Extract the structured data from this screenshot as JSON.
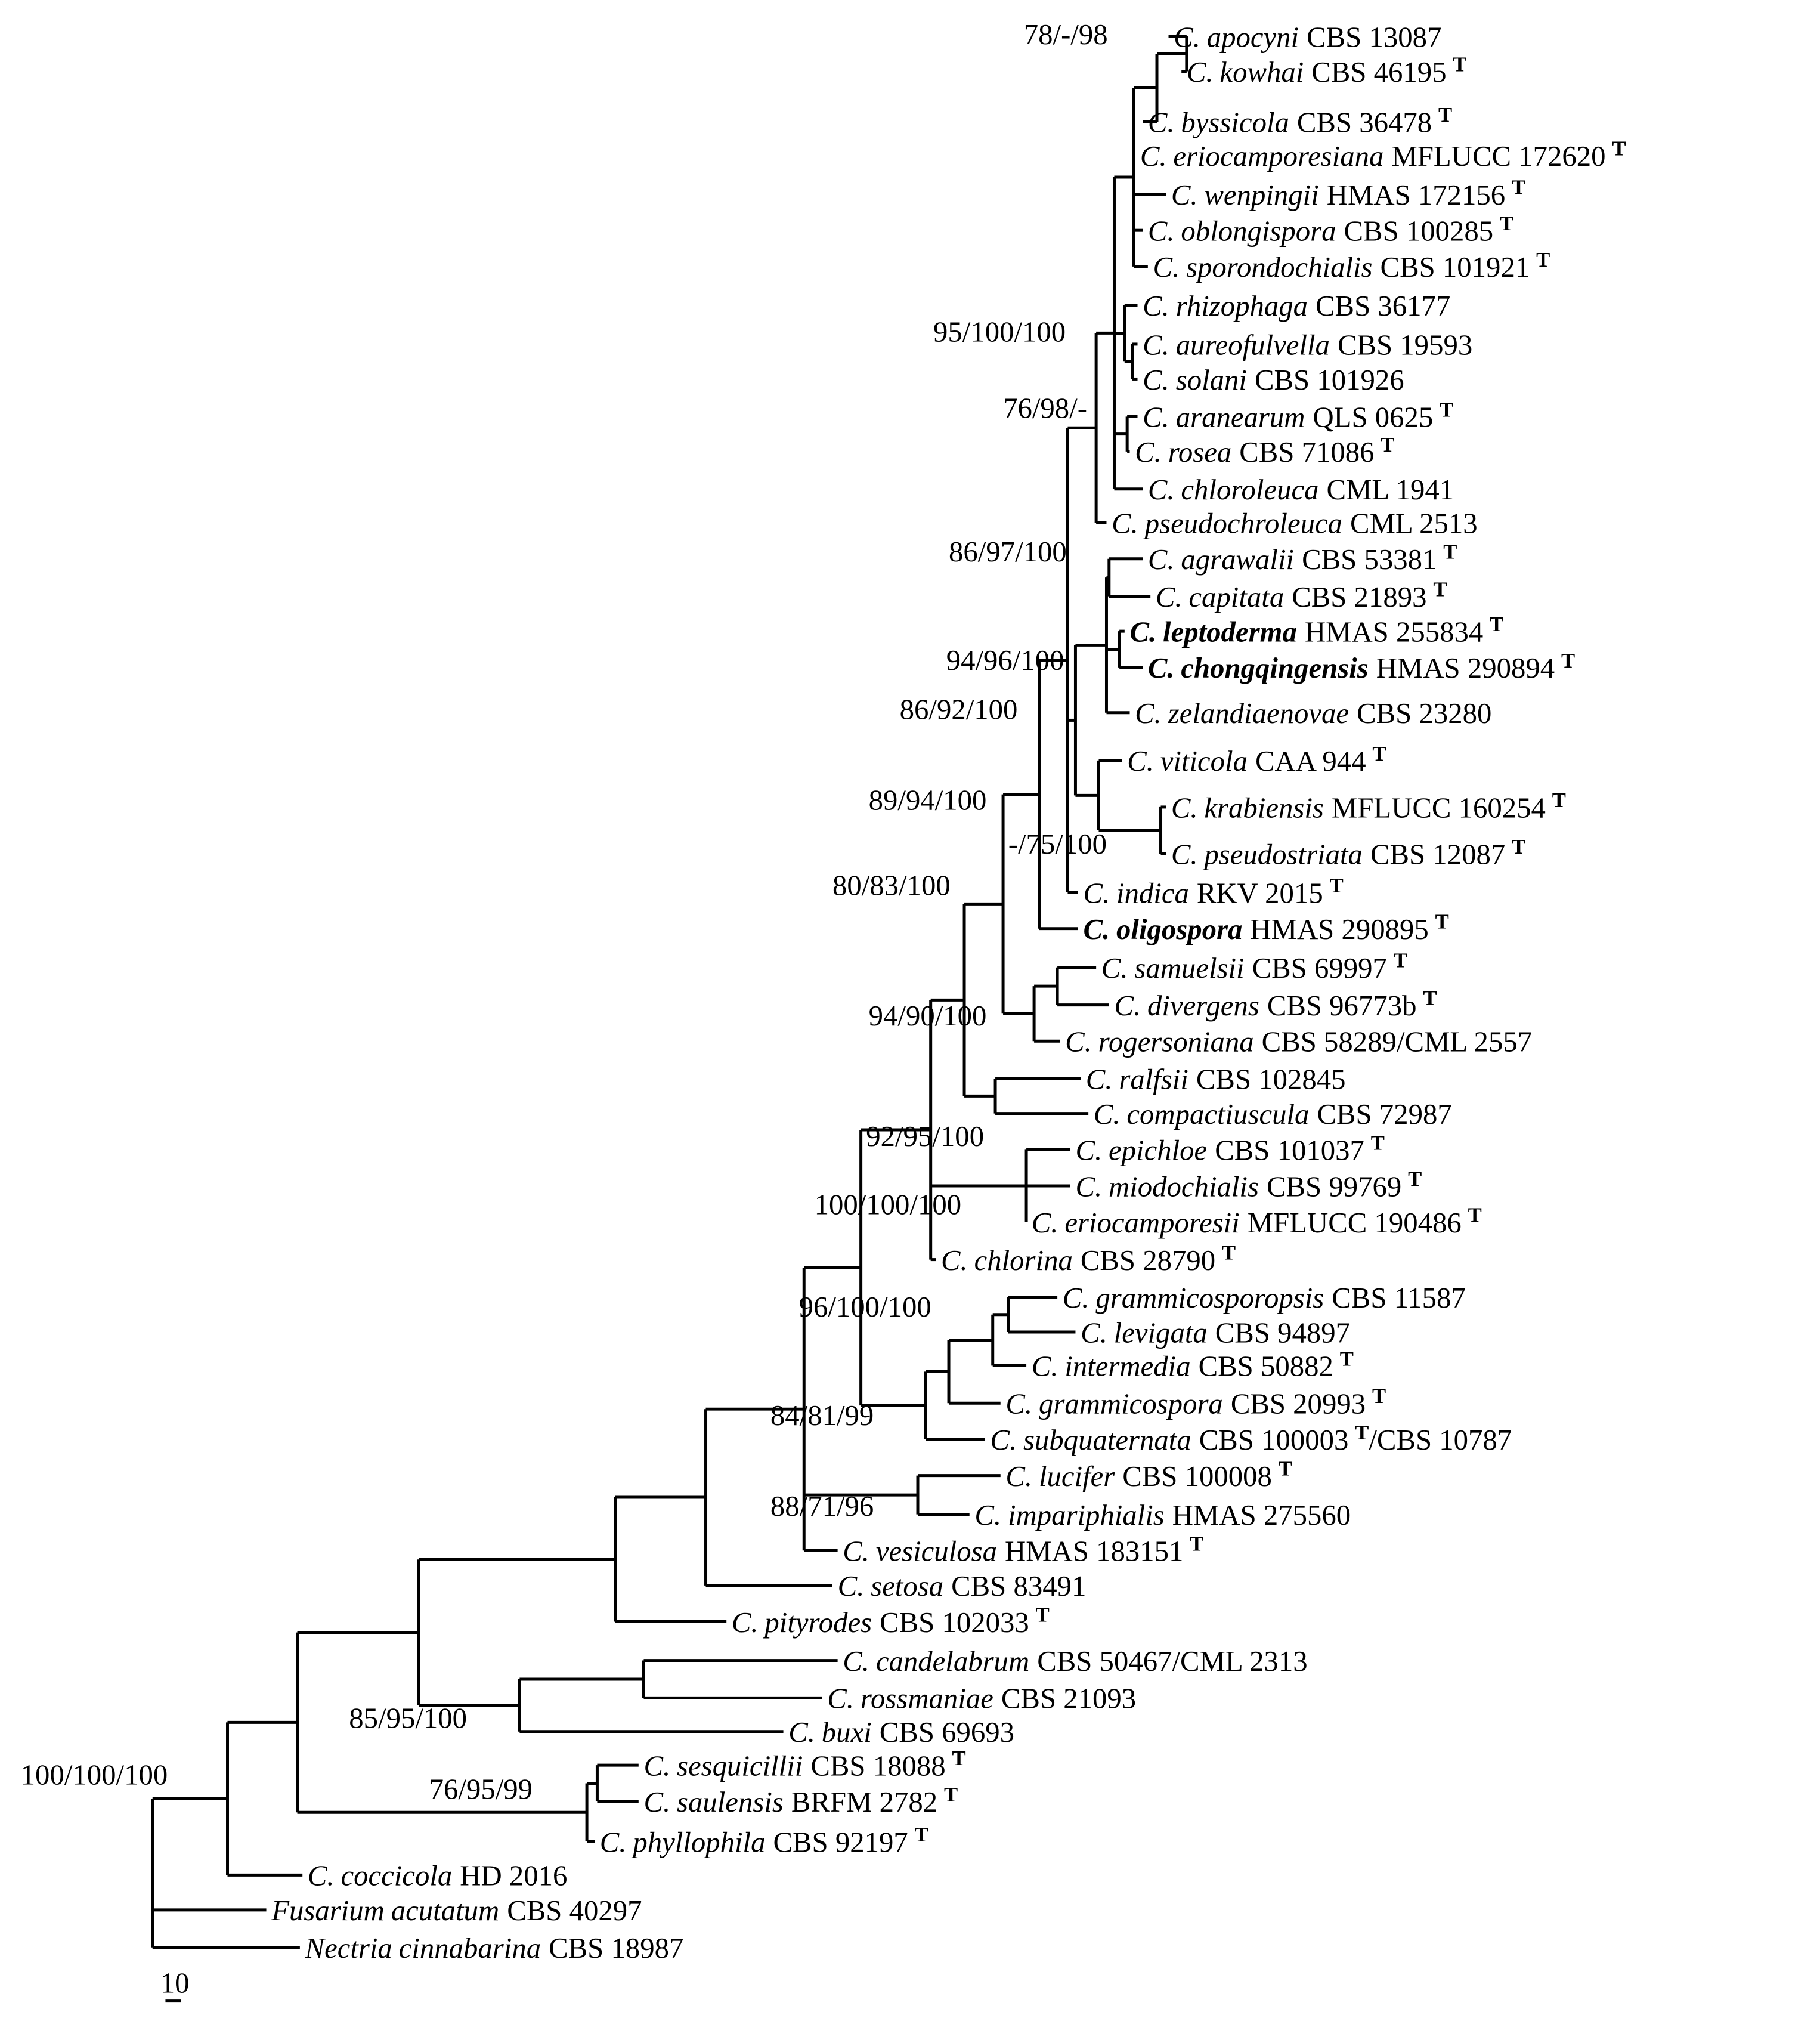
{
  "taxa": [
    {
      "id": "t1",
      "genus": "C.",
      "species": "apocyni",
      "strain": "CBS 13087",
      "type": false,
      "bold": false
    },
    {
      "id": "t2",
      "genus": "C.",
      "species": "kowhai",
      "strain": "CBS 46195",
      "type": true,
      "bold": false
    },
    {
      "id": "t3",
      "genus": "C.",
      "species": "byssicola",
      "strain": "CBS 36478",
      "type": true,
      "bold": false
    },
    {
      "id": "t4",
      "genus": "C.",
      "species": "eriocamporesiana",
      "strain": "MFLUCC 172620",
      "type": true,
      "bold": false
    },
    {
      "id": "t5",
      "genus": "C.",
      "species": "wenpingii",
      "strain": "HMAS 172156",
      "type": true,
      "bold": false
    },
    {
      "id": "t6",
      "genus": "C.",
      "species": "oblongispora",
      "strain": "CBS 100285",
      "type": true,
      "bold": false
    },
    {
      "id": "t7",
      "genus": "C.",
      "species": "sporondochialis",
      "strain": "CBS 101921",
      "type": true,
      "bold": false
    },
    {
      "id": "t8",
      "genus": "C.",
      "species": "rhizophaga",
      "strain": "CBS 36177",
      "type": false,
      "bold": false
    },
    {
      "id": "t9",
      "genus": "C.",
      "species": "aureofulvella",
      "strain": "CBS 19593",
      "type": false,
      "bold": false
    },
    {
      "id": "t10",
      "genus": "C.",
      "species": "solani",
      "strain": "CBS 101926",
      "type": false,
      "bold": false
    },
    {
      "id": "t11",
      "genus": "C.",
      "species": "aranearum",
      "strain": "QLS 0625",
      "type": true,
      "bold": false
    },
    {
      "id": "t12",
      "genus": "C.",
      "species": "rosea",
      "strain": "CBS 71086",
      "type": true,
      "bold": false
    },
    {
      "id": "t13",
      "genus": "C.",
      "species": "chloroleuca",
      "strain": "CML 1941",
      "type": false,
      "bold": false
    },
    {
      "id": "t14",
      "genus": "C.",
      "species": "pseudochroleuca",
      "strain": "CML 2513",
      "type": false,
      "bold": false
    },
    {
      "id": "t15",
      "genus": "C.",
      "species": "agrawalii",
      "strain": "CBS 53381",
      "type": true,
      "bold": false
    },
    {
      "id": "t16",
      "genus": "C.",
      "species": "capitata",
      "strain": "CBS 21893",
      "type": true,
      "bold": false
    },
    {
      "id": "t17",
      "genus": "C.",
      "species": "leptoderma",
      "strain": "HMAS 255834",
      "type": true,
      "bold": true
    },
    {
      "id": "t18",
      "genus": "C.",
      "species": "chongqingensis",
      "strain": "HMAS 290894",
      "type": true,
      "bold": true
    },
    {
      "id": "t19",
      "genus": "C.",
      "species": "zelandiaenovae",
      "strain": "CBS 23280",
      "type": false,
      "bold": false
    },
    {
      "id": "t20",
      "genus": "C.",
      "species": "viticola",
      "strain": "CAA 944",
      "type": true,
      "bold": false
    },
    {
      "id": "t21",
      "genus": "C.",
      "species": "krabiensis",
      "strain": "MFLUCC 160254",
      "type": true,
      "bold": false
    },
    {
      "id": "t22",
      "genus": "C.",
      "species": "pseudostriata",
      "strain": "CBS 12087",
      "type": true,
      "bold": false
    },
    {
      "id": "t23",
      "genus": "C.",
      "species": "indica",
      "strain": "RKV 2015",
      "type": true,
      "bold": false
    },
    {
      "id": "t24",
      "genus": "C.",
      "species": "oligospora",
      "strain": "HMAS 290895",
      "type": true,
      "bold": true
    },
    {
      "id": "t25",
      "genus": "C.",
      "species": "samuelsii",
      "strain": "CBS 69997",
      "type": true,
      "bold": false
    },
    {
      "id": "t26",
      "genus": "C.",
      "species": "divergens",
      "strain": "CBS 96773b",
      "type": true,
      "bold": false
    },
    {
      "id": "t27",
      "genus": "C.",
      "species": "rogersoniana",
      "strain": "CBS 58289/CML 2557",
      "type": false,
      "bold": false
    },
    {
      "id": "t28",
      "genus": "C.",
      "species": "ralfsii",
      "strain": "CBS 102845",
      "type": false,
      "bold": false
    },
    {
      "id": "t29",
      "genus": "C.",
      "species": "compactiuscula",
      "strain": "CBS 72987",
      "type": false,
      "bold": false
    },
    {
      "id": "t30",
      "genus": "C.",
      "species": "epichloe",
      "strain": "CBS 101037",
      "type": true,
      "bold": false
    },
    {
      "id": "t31",
      "genus": "C.",
      "species": "miodochialis",
      "strain": "CBS 99769",
      "type": true,
      "bold": false
    },
    {
      "id": "t32",
      "genus": "C.",
      "species": "eriocamporesii",
      "strain": "MFLUCC 190486",
      "type": true,
      "bold": false
    },
    {
      "id": "t33",
      "genus": "C.",
      "species": "chlorina",
      "strain": "CBS 28790",
      "type": true,
      "bold": false
    },
    {
      "id": "t34",
      "genus": "C.",
      "species": "grammicosporopsis",
      "strain": "CBS 11587",
      "type": false,
      "bold": false
    },
    {
      "id": "t35",
      "genus": "C.",
      "species": "levigata",
      "strain": "CBS 94897",
      "type": false,
      "bold": false
    },
    {
      "id": "t36",
      "genus": "C.",
      "species": "intermedia",
      "strain": "CBS 50882",
      "type": true,
      "bold": false
    },
    {
      "id": "t37",
      "genus": "C.",
      "species": "grammicospora",
      "strain": "CBS 20993",
      "type": true,
      "bold": false
    },
    {
      "id": "t38",
      "genus": "C.",
      "species": "subquaternata",
      "strain": "CBS 100003",
      "type": true,
      "strain2": "/CBS 10787",
      "bold": false
    },
    {
      "id": "t39",
      "genus": "C.",
      "species": "lucifer",
      "strain": "CBS 100008",
      "type": true,
      "bold": false
    },
    {
      "id": "t40",
      "genus": "C.",
      "species": "impariphialis",
      "strain": "HMAS 275560",
      "type": false,
      "bold": false
    },
    {
      "id": "t41",
      "genus": "C.",
      "species": "vesiculosa",
      "strain": "HMAS 183151",
      "type": true,
      "bold": false
    },
    {
      "id": "t42",
      "genus": "C.",
      "species": "setosa",
      "strain": "CBS 83491",
      "type": false,
      "bold": false
    },
    {
      "id": "t43",
      "genus": "C.",
      "species": "pityrodes",
      "strain": "CBS 102033",
      "type": true,
      "bold": false
    },
    {
      "id": "t44",
      "genus": "C.",
      "species": "candelabrum",
      "strain": "CBS 50467/CML 2313",
      "type": false,
      "bold": false
    },
    {
      "id": "t45",
      "genus": "C.",
      "species": "rossmaniae",
      "strain": "CBS 21093",
      "type": false,
      "bold": false
    },
    {
      "id": "t46",
      "genus": "C.",
      "species": "buxi",
      "strain": "CBS 69693",
      "type": false,
      "bold": false
    },
    {
      "id": "t47",
      "genus": "C.",
      "species": "sesquicillii",
      "strain": "CBS 18088",
      "type": true,
      "bold": false
    },
    {
      "id": "t48",
      "genus": "C.",
      "species": "saulensis",
      "strain": "BRFM 2782",
      "type": true,
      "bold": false
    },
    {
      "id": "t49",
      "genus": "C.",
      "species": "phyllophila",
      "strain": "CBS 92197",
      "type": true,
      "bold": false
    },
    {
      "id": "t50",
      "genus": "C.",
      "species": "coccicola",
      "strain": "HD 2016",
      "type": false,
      "bold": false
    },
    {
      "id": "t51",
      "genus": "Fusarium",
      "species": "acutatum",
      "strain": "CBS 40297",
      "type": false,
      "bold": false
    },
    {
      "id": "t52",
      "genus": "Nectria",
      "species": "cinnabarina",
      "strain": "CBS 18987",
      "type": false,
      "bold": false
    }
  ],
  "type_marker": "T",
  "support_values": [
    {
      "id": "s1",
      "text": "78/-/98"
    },
    {
      "id": "s2",
      "text": "95/100/100"
    },
    {
      "id": "s3",
      "text": "76/98/-"
    },
    {
      "id": "s4",
      "text": "86/97/100"
    },
    {
      "id": "s5",
      "text": "94/96/100"
    },
    {
      "id": "s6",
      "text": "86/92/100"
    },
    {
      "id": "s7",
      "text": "89/94/100"
    },
    {
      "id": "s8",
      "text": "-/75/100"
    },
    {
      "id": "s9",
      "text": "80/83/100"
    },
    {
      "id": "s10",
      "text": "94/90/100"
    },
    {
      "id": "s11",
      "text": "92/95/100"
    },
    {
      "id": "s12",
      "text": "100/100/100"
    },
    {
      "id": "s13",
      "text": "96/100/100"
    },
    {
      "id": "s14",
      "text": "84/81/99"
    },
    {
      "id": "s15",
      "text": "88/71/96"
    },
    {
      "id": "s16",
      "text": "85/95/100"
    },
    {
      "id": "s17",
      "text": "76/95/99"
    },
    {
      "id": "s18",
      "text": "100/100/100"
    }
  ],
  "scale_bar": {
    "label": "10"
  }
}
